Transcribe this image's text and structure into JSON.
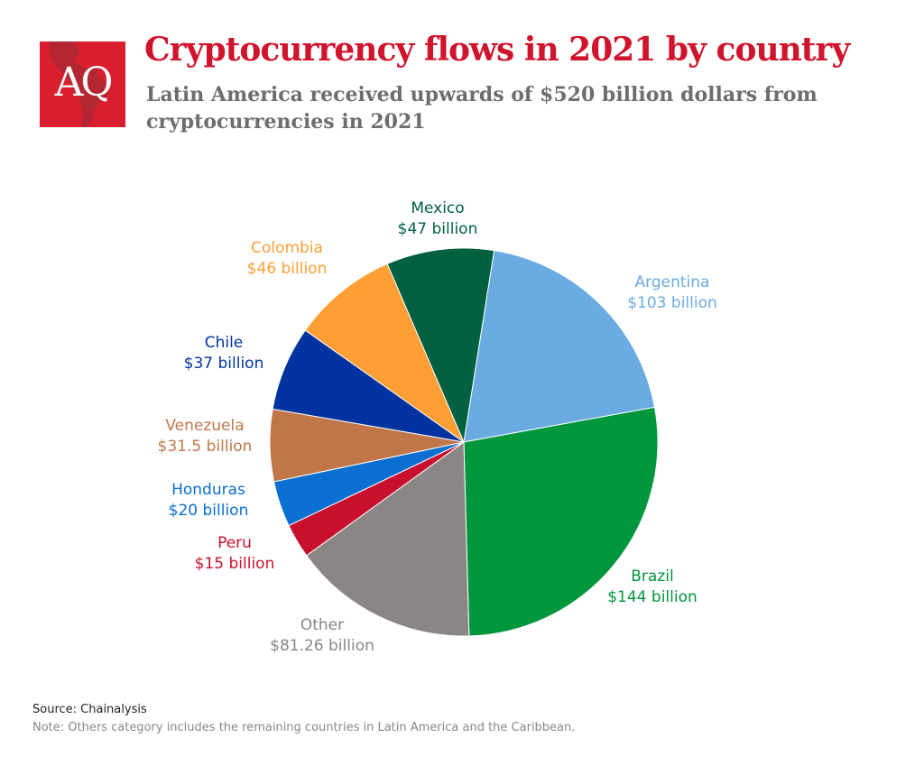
{
  "logo": {
    "text": "AQ",
    "color": "#d91f2e"
  },
  "title": "Cryptocurrency flows in 2021 by country",
  "subtitle": "Latin America received upwards of $520 billion dollars from cryptocurrencies in 2021",
  "chart_data": {
    "type": "pie",
    "unit": "billion USD",
    "start": "Argentina at top, clockwise",
    "slices": [
      {
        "name": "Argentina",
        "value": 103,
        "label": "$103 billion",
        "color": "#6aabe2"
      },
      {
        "name": "Brazil",
        "value": 144,
        "label": "$144 billion",
        "color": "#00963c"
      },
      {
        "name": "Other",
        "value": 81.26,
        "label": "$81.26 billion",
        "color": "#8a8685"
      },
      {
        "name": "Peru",
        "value": 15,
        "label": "$15 billion",
        "color": "#c8102e"
      },
      {
        "name": "Honduras",
        "value": 20,
        "label": "$20 billion",
        "color": "#0a6fd0"
      },
      {
        "name": "Venezuela",
        "value": 31.5,
        "label": "$31.5 billion",
        "color": "#c07648"
      },
      {
        "name": "Chile",
        "value": 37,
        "label": "$37 billion",
        "color": "#0033a0"
      },
      {
        "name": "Colombia",
        "value": 46,
        "label": "$46 billion",
        "color": "#ff9e34"
      },
      {
        "name": "Mexico",
        "value": 47,
        "label": "$47 billion",
        "color": "#006141"
      }
    ]
  },
  "source": "Source: Chainalysis",
  "note": "Note: Others category includes the remaining countries in Latin America and the Caribbean."
}
